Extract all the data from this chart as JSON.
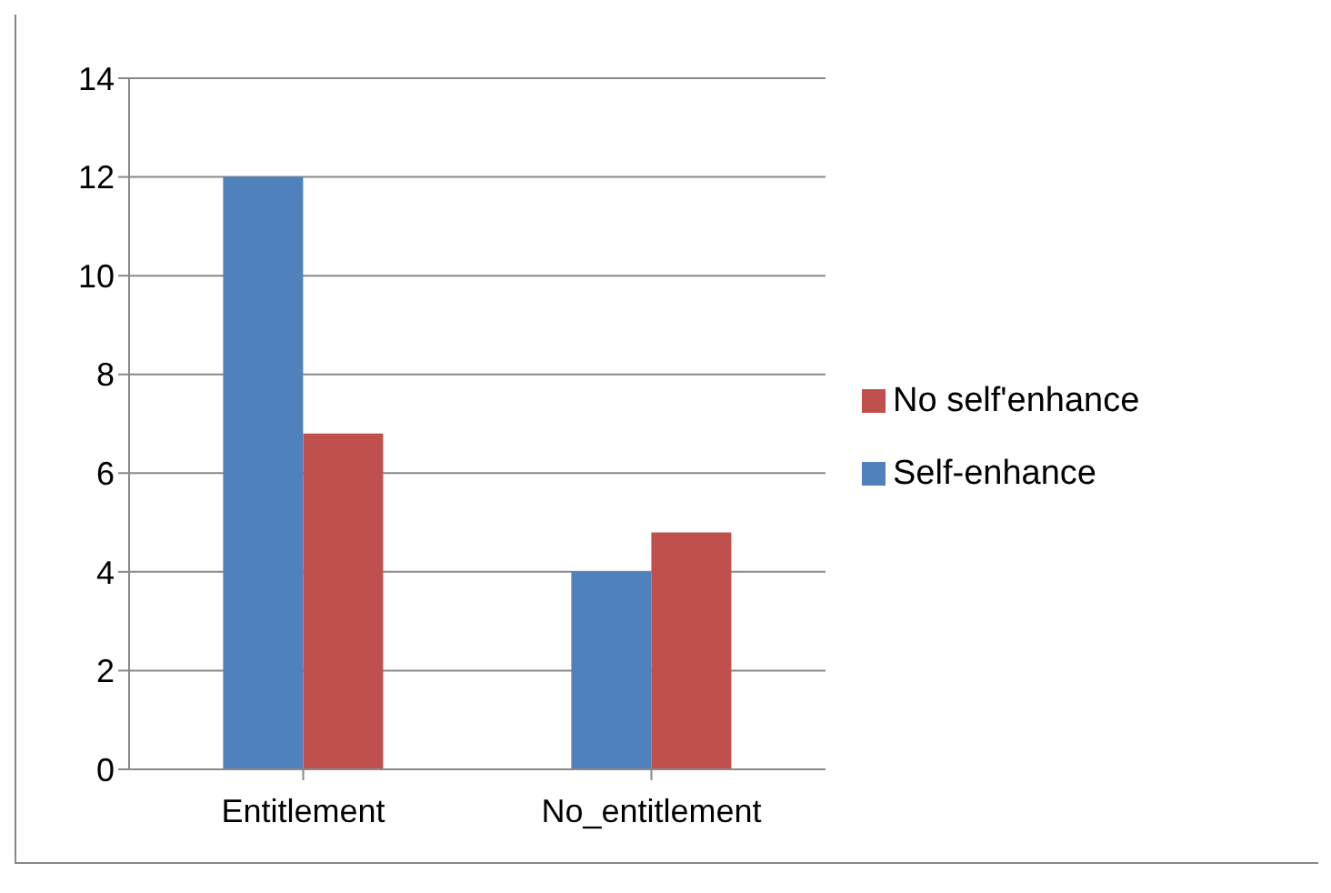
{
  "chart_data": {
    "type": "bar",
    "categories": [
      "Entitlement",
      "No_entitlement"
    ],
    "series": [
      {
        "name": "Self-enhance",
        "color": "#4f81bd",
        "values": [
          12,
          4.0
        ]
      },
      {
        "name": "No self'enhance",
        "color": "#c0504d",
        "values": [
          6.8,
          4.8
        ]
      }
    ],
    "ylim": [
      0,
      14
    ],
    "yticks": [
      0,
      2,
      4,
      6,
      8,
      10,
      12,
      14
    ],
    "grid": "y",
    "legend": "right"
  }
}
